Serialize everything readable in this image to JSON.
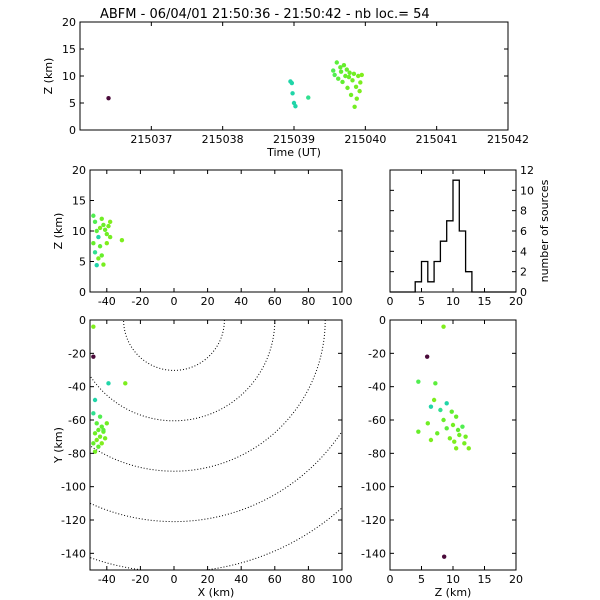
{
  "title": "ABFM - 06/04/01 21:50:36 - 21:50:42 - nb loc.=      54",
  "chart_data": [
    {
      "panel": "time-altitude",
      "type": "scatter",
      "xlabel": "Time (UT)",
      "ylabel": "Z (km)",
      "xlim": [
        215036,
        215042
      ],
      "ylim": [
        0,
        20
      ],
      "x_ticks": [
        "215037",
        "215038",
        "215039",
        "215040",
        "215041",
        "215042"
      ],
      "y_ticks": [
        "0",
        "5",
        "10",
        "15",
        "20"
      ],
      "points": [
        {
          "x": 215036.4,
          "y": 5.9,
          "c": "#4a0a3a"
        },
        {
          "x": 215038.95,
          "y": 9.0,
          "c": "#20d5a8"
        },
        {
          "x": 215038.97,
          "y": 8.7,
          "c": "#20d5a8"
        },
        {
          "x": 215038.98,
          "y": 6.8,
          "c": "#20d5a8"
        },
        {
          "x": 215039.0,
          "y": 5.0,
          "c": "#20d5a8"
        },
        {
          "x": 215039.02,
          "y": 4.4,
          "c": "#20d5a8"
        },
        {
          "x": 215039.2,
          "y": 6.0,
          "c": "#30e090"
        },
        {
          "x": 215039.55,
          "y": 11.0,
          "c": "#50ee50"
        },
        {
          "x": 215039.57,
          "y": 10.2,
          "c": "#50ee50"
        },
        {
          "x": 215039.6,
          "y": 12.5,
          "c": "#5cee3c"
        },
        {
          "x": 215039.62,
          "y": 9.5,
          "c": "#5cee3c"
        },
        {
          "x": 215039.65,
          "y": 11.6,
          "c": "#60ee30"
        },
        {
          "x": 215039.66,
          "y": 10.8,
          "c": "#60ee30"
        },
        {
          "x": 215039.68,
          "y": 8.9,
          "c": "#60ee30"
        },
        {
          "x": 215039.7,
          "y": 12.0,
          "c": "#66ee2a"
        },
        {
          "x": 215039.72,
          "y": 10.0,
          "c": "#66ee2a"
        },
        {
          "x": 215039.74,
          "y": 11.2,
          "c": "#66ee2a"
        },
        {
          "x": 215039.75,
          "y": 7.8,
          "c": "#6aee28"
        },
        {
          "x": 215039.77,
          "y": 9.8,
          "c": "#6aee28"
        },
        {
          "x": 215039.78,
          "y": 10.6,
          "c": "#6aee28"
        },
        {
          "x": 215039.8,
          "y": 6.5,
          "c": "#70ee24"
        },
        {
          "x": 215039.82,
          "y": 9.2,
          "c": "#70ee24"
        },
        {
          "x": 215039.84,
          "y": 10.4,
          "c": "#70ee24"
        },
        {
          "x": 215039.85,
          "y": 4.3,
          "c": "#74ee22"
        },
        {
          "x": 215039.87,
          "y": 8.0,
          "c": "#74ee22"
        },
        {
          "x": 215039.88,
          "y": 5.8,
          "c": "#78ee20"
        },
        {
          "x": 215039.9,
          "y": 10.0,
          "c": "#78ee20"
        },
        {
          "x": 215039.92,
          "y": 7.2,
          "c": "#7cee1e"
        },
        {
          "x": 215039.93,
          "y": 8.8,
          "c": "#7cee1e"
        },
        {
          "x": 215039.95,
          "y": 10.2,
          "c": "#80ee1c"
        }
      ]
    },
    {
      "panel": "x-altitude",
      "type": "scatter",
      "xlabel": "",
      "ylabel": "Z (km)",
      "xlim": [
        -50,
        100
      ],
      "ylim": [
        0,
        20
      ],
      "x_ticks": [
        "-40",
        "-20",
        "0",
        "20",
        "40",
        "60",
        "80",
        "100"
      ],
      "y_ticks": [
        "0",
        "5",
        "10",
        "15",
        "20"
      ],
      "points": [
        {
          "x": -48,
          "y": 12.5,
          "c": "#50ee50"
        },
        {
          "x": -47,
          "y": 11.5,
          "c": "#50ee50"
        },
        {
          "x": -46,
          "y": 10.0,
          "c": "#5cee3c"
        },
        {
          "x": -45,
          "y": 9.0,
          "c": "#20d5a8"
        },
        {
          "x": -44,
          "y": 7.5,
          "c": "#60ee30"
        },
        {
          "x": -43,
          "y": 6.0,
          "c": "#66ee2a"
        },
        {
          "x": -48,
          "y": 8.0,
          "c": "#66ee2a"
        },
        {
          "x": -42,
          "y": 11.0,
          "c": "#6aee28"
        },
        {
          "x": -41,
          "y": 10.2,
          "c": "#6aee28"
        },
        {
          "x": -40,
          "y": 9.5,
          "c": "#70ee24"
        },
        {
          "x": -43,
          "y": 12.0,
          "c": "#70ee24"
        },
        {
          "x": -39,
          "y": 10.8,
          "c": "#74ee22"
        },
        {
          "x": -38,
          "y": 9.0,
          "c": "#74ee22"
        },
        {
          "x": -45,
          "y": 5.5,
          "c": "#78ee20"
        },
        {
          "x": -42,
          "y": 4.5,
          "c": "#78ee20"
        },
        {
          "x": -44,
          "y": 10.5,
          "c": "#7cee1e"
        },
        {
          "x": -47,
          "y": 6.5,
          "c": "#30e090"
        },
        {
          "x": -40,
          "y": 8.0,
          "c": "#80ee1c"
        },
        {
          "x": -31,
          "y": 8.5,
          "c": "#7cee1e"
        },
        {
          "x": -46,
          "y": 4.4,
          "c": "#20d5a8"
        },
        {
          "x": -38,
          "y": 11.5,
          "c": "#80ee1c"
        }
      ]
    },
    {
      "panel": "altitude-histogram",
      "type": "bar",
      "xlabel": "",
      "ylabel": "number of sources",
      "xlim": [
        0,
        20
      ],
      "ylim": [
        0,
        12
      ],
      "x_ticks": [
        "0",
        "5",
        "10",
        "15",
        "20"
      ],
      "y_ticks": [
        "0",
        "2",
        "4",
        "6",
        "8",
        "10",
        "12"
      ],
      "bin_edges": [
        0,
        1,
        2,
        3,
        4,
        5,
        6,
        7,
        8,
        9,
        10,
        11,
        12,
        13,
        14,
        15,
        16,
        17,
        18,
        19,
        20
      ],
      "counts": [
        0,
        0,
        0,
        0,
        1,
        3,
        1,
        3,
        5,
        7,
        11,
        6,
        2,
        0,
        0,
        0,
        0,
        0,
        0,
        0
      ]
    },
    {
      "panel": "plan-view",
      "type": "scatter",
      "xlabel": "X (km)",
      "ylabel": "Y (km)",
      "xlim": [
        -50,
        100
      ],
      "ylim": [
        -150,
        0
      ],
      "x_ticks": [
        "-40",
        "-20",
        "0",
        "20",
        "40",
        "60",
        "80",
        "100"
      ],
      "y_ticks": [
        "0",
        "-20",
        "-40",
        "-60",
        "-80",
        "-100",
        "-120",
        "-140"
      ],
      "range_rings_km": [
        30,
        60,
        90,
        120,
        150
      ],
      "points": [
        {
          "x": -48,
          "y": -4,
          "c": "#80ee1c"
        },
        {
          "x": -48,
          "y": -22,
          "c": "#4a0a3a"
        },
        {
          "x": -39,
          "y": -38,
          "c": "#20d5a8"
        },
        {
          "x": -29,
          "y": -38,
          "c": "#7cee1e"
        },
        {
          "x": -47,
          "y": -48,
          "c": "#20d5a8"
        },
        {
          "x": -48,
          "y": -56,
          "c": "#30e090"
        },
        {
          "x": -44,
          "y": -58,
          "c": "#50ee50"
        },
        {
          "x": -46,
          "y": -62,
          "c": "#5cee3c"
        },
        {
          "x": -43,
          "y": -64,
          "c": "#60ee30"
        },
        {
          "x": -45,
          "y": -66,
          "c": "#66ee2a"
        },
        {
          "x": -42,
          "y": -67,
          "c": "#6aee28"
        },
        {
          "x": -47,
          "y": -68,
          "c": "#70ee24"
        },
        {
          "x": -44,
          "y": -70,
          "c": "#74ee22"
        },
        {
          "x": -41,
          "y": -71,
          "c": "#78ee20"
        },
        {
          "x": -46,
          "y": -72,
          "c": "#7cee1e"
        },
        {
          "x": -43,
          "y": -74,
          "c": "#80ee1c"
        },
        {
          "x": -45,
          "y": -76,
          "c": "#60ee30"
        },
        {
          "x": -48,
          "y": -74,
          "c": "#66ee2a"
        },
        {
          "x": -42,
          "y": -66,
          "c": "#5cee3c"
        },
        {
          "x": -40,
          "y": -62,
          "c": "#70ee24"
        },
        {
          "x": -47,
          "y": -79,
          "c": "#74ee22"
        }
      ]
    },
    {
      "panel": "z-y",
      "type": "scatter",
      "xlabel": "Z (km)",
      "ylabel": "",
      "xlim": [
        0,
        20
      ],
      "ylim": [
        -150,
        0
      ],
      "x_ticks": [
        "0",
        "5",
        "10",
        "15",
        "20"
      ],
      "y_ticks": [
        "0",
        "-20",
        "-40",
        "-60",
        "-80",
        "-100",
        "-120",
        "-140"
      ],
      "points": [
        {
          "x": 8.5,
          "y": -4,
          "c": "#80ee1c"
        },
        {
          "x": 5.9,
          "y": -22,
          "c": "#4a0a3a"
        },
        {
          "x": 4.5,
          "y": -37,
          "c": "#50ee50"
        },
        {
          "x": 7.2,
          "y": -38,
          "c": "#5cee3c"
        },
        {
          "x": 7.0,
          "y": -48,
          "c": "#7cee1e"
        },
        {
          "x": 9.0,
          "y": -50,
          "c": "#20d5a8"
        },
        {
          "x": 6.5,
          "y": -52,
          "c": "#20d5a8"
        },
        {
          "x": 8.0,
          "y": -54,
          "c": "#30e090"
        },
        {
          "x": 9.8,
          "y": -55,
          "c": "#60ee30"
        },
        {
          "x": 10.5,
          "y": -58,
          "c": "#66ee2a"
        },
        {
          "x": 8.5,
          "y": -60,
          "c": "#6aee28"
        },
        {
          "x": 6.0,
          "y": -62,
          "c": "#70ee24"
        },
        {
          "x": 10.0,
          "y": -63,
          "c": "#74ee22"
        },
        {
          "x": 11.5,
          "y": -64,
          "c": "#50ee50"
        },
        {
          "x": 9.0,
          "y": -65,
          "c": "#5cee3c"
        },
        {
          "x": 10.8,
          "y": -66,
          "c": "#60ee30"
        },
        {
          "x": 4.5,
          "y": -67,
          "c": "#66ee2a"
        },
        {
          "x": 7.5,
          "y": -68,
          "c": "#6aee28"
        },
        {
          "x": 11.0,
          "y": -69,
          "c": "#70ee24"
        },
        {
          "x": 12.0,
          "y": -70,
          "c": "#74ee22"
        },
        {
          "x": 9.5,
          "y": -71,
          "c": "#78ee20"
        },
        {
          "x": 6.5,
          "y": -72,
          "c": "#7cee1e"
        },
        {
          "x": 10.2,
          "y": -73,
          "c": "#80ee1c"
        },
        {
          "x": 11.8,
          "y": -74,
          "c": "#78ee20"
        },
        {
          "x": 12.5,
          "y": -77,
          "c": "#7cee1e"
        },
        {
          "x": 10.5,
          "y": -77,
          "c": "#80ee1c"
        },
        {
          "x": 8.6,
          "y": -142,
          "c": "#4a0a3a"
        }
      ]
    }
  ]
}
